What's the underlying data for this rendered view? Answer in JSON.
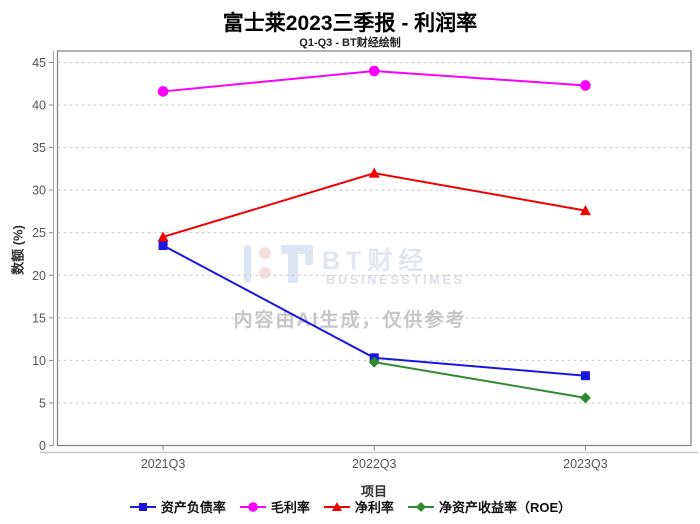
{
  "title": "富士莱2023三季报 - 利润率",
  "subtitle": "Q1-Q3 - BT财经绘制",
  "watermark": {
    "logo_text": "BT财经",
    "logo_subtext": "BUSINESSTIMES",
    "ai_notice": "内容由AI生成，仅供参考"
  },
  "chart_data": {
    "type": "line",
    "categories": [
      "2021Q3",
      "2022Q3",
      "2023Q3"
    ],
    "series": [
      {
        "name": "资产负债率",
        "marker": "square",
        "color": "#1a16e0",
        "values": [
          23.5,
          10.3,
          8.2
        ]
      },
      {
        "name": "毛利率",
        "marker": "circle",
        "color": "#fb00fb",
        "values": [
          41.6,
          44.0,
          42.3
        ]
      },
      {
        "name": "净利率",
        "marker": "triangle",
        "color": "#f20000",
        "values": [
          24.5,
          32.0,
          27.6
        ]
      },
      {
        "name": "净资产收益率（ROE）",
        "marker": "diamond",
        "color": "#2e8b2e",
        "values": [
          null,
          9.8,
          5.6
        ]
      }
    ],
    "xlabel": "项目",
    "ylabel": "数额 (%)",
    "ylim": [
      0,
      45
    ],
    "ytick_step": 5,
    "grid": true,
    "legend_position": "bottom"
  }
}
